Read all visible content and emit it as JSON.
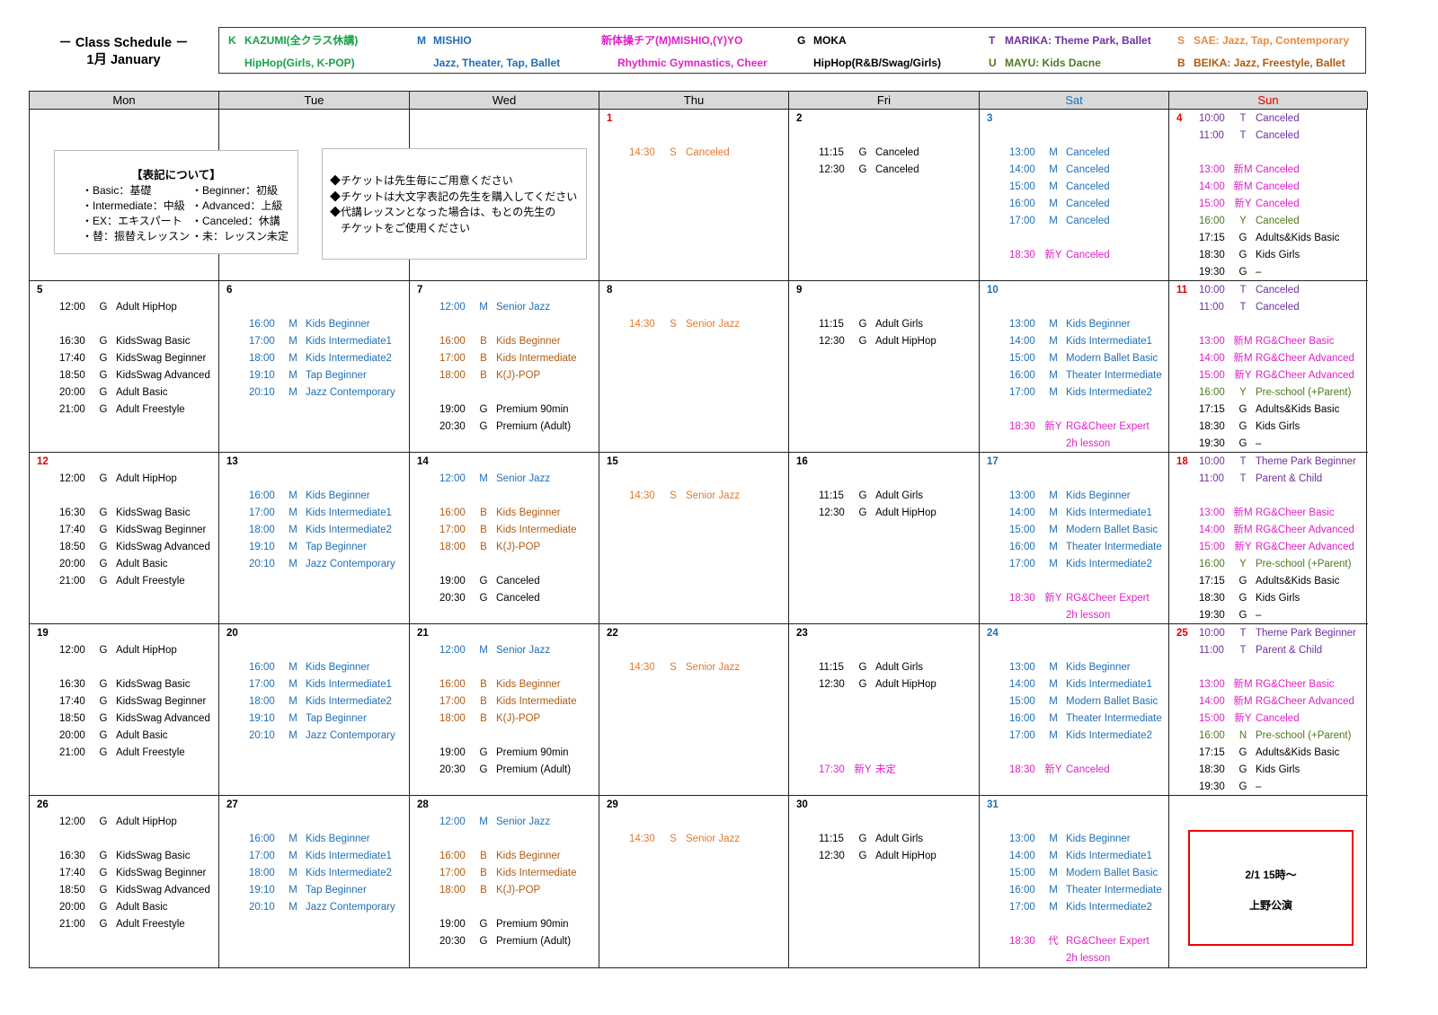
{
  "header": {
    "title_line1": "－ Class Schedule －",
    "title_line2": "1月 January"
  },
  "teachers": [
    {
      "code": "K",
      "name": "KAZUMI(全クラス休講)",
      "desc": "HipHop(Girls, K-POP)",
      "color": "#1aa04a"
    },
    {
      "code": "M",
      "name": "MISHIO",
      "desc": "Jazz, Theater, Tap, Ballet",
      "color": "#1f6fb5"
    },
    {
      "code": "",
      "name": "新体操チア(M)MISHIO,(Y)YO",
      "desc": "Rhythmic Gymnastics, Cheer",
      "color": "#e020c8"
    },
    {
      "code": "G",
      "name": "MOKA",
      "desc": "HipHop(R&B/Swag/Girls)",
      "color": "#000000"
    },
    {
      "code": "T",
      "name": "MARIKA: Theme Park, Ballet",
      "desc": "MAYU: Kids Dacne",
      "desc_code": "U",
      "color": "#7030a0",
      "desc_color": "#4e7a1f"
    },
    {
      "code": "S",
      "name": "SAE: Jazz, Tap, Contemporary",
      "desc": "BEIKA: Jazz, Freestyle, Ballet",
      "desc_code": "B",
      "color": "#e88a40",
      "desc_color": "#b05a10"
    }
  ],
  "code_colors": {
    "G": "#000000",
    "M": "#1f6fb5",
    "新M": "#e020c8",
    "新Y": "#e020c8",
    "代": "#e020c8",
    "Y": "#4e7a1f",
    "N": "#4e7a1f",
    "T": "#7030a0",
    "S": "#e07a30",
    "B": "#b05a10"
  },
  "day_colors": {
    "red": "#e00000",
    "blue": "#1f6fb5",
    "black": "#000000"
  },
  "weekdays": [
    {
      "label": "Mon",
      "color": "#000000"
    },
    {
      "label": "Tue",
      "color": "#000000"
    },
    {
      "label": "Wed",
      "color": "#000000"
    },
    {
      "label": "Thu",
      "color": "#000000"
    },
    {
      "label": "Fri",
      "color": "#000000"
    },
    {
      "label": "Sat",
      "color": "#1f6fb5"
    },
    {
      "label": "Sun",
      "color": "#e00000"
    }
  ],
  "notation_box": {
    "heading": "【表記について】",
    "items": [
      "・Basic：基礎",
      "・Beginner：初級",
      "・Intermediate：中級",
      "・Advanced：上級",
      "・EX：エキスパート",
      "・Canceled：休講",
      "・替：振替えレッスン",
      "・未：レッスン未定"
    ]
  },
  "ticket_notes": [
    "◆チケットは先生毎にご用意ください",
    "◆チケットは大文字表記の先生を購入してください",
    "◆代講レッスンとなった場合は、もとの先生の",
    "　チケットをご使用ください"
  ],
  "event_box": {
    "line1": "2/1 15時～",
    "line2": "上野公演"
  },
  "weeks": [
    [
      {
        "day": "",
        "lines": []
      },
      {
        "day": "",
        "lines": []
      },
      {
        "day": "",
        "lines": []
      },
      {
        "day": "1",
        "color": "red",
        "lines": [
          null,
          null,
          [
            "14:30",
            "S",
            "Canceled"
          ]
        ]
      },
      {
        "day": "2",
        "lines": [
          null,
          null,
          [
            "11:15",
            "G",
            "Canceled"
          ],
          [
            "12:30",
            "G",
            "Canceled"
          ]
        ]
      },
      {
        "day": "3",
        "color": "blue",
        "lines": [
          null,
          null,
          [
            "13:00",
            "M",
            "Canceled"
          ],
          [
            "14:00",
            "M",
            "Canceled"
          ],
          [
            "15:00",
            "M",
            "Canceled"
          ],
          [
            "16:00",
            "M",
            "Canceled"
          ],
          [
            "17:00",
            "M",
            "Canceled"
          ],
          null,
          [
            "18:30",
            "新Y",
            "Canceled"
          ]
        ]
      },
      {
        "day": "4",
        "color": "red",
        "lines": [
          [
            "10:00",
            "T",
            "Canceled"
          ],
          [
            "11:00",
            "T",
            "Canceled"
          ],
          null,
          [
            "13:00",
            "新M",
            "Canceled"
          ],
          [
            "14:00",
            "新M",
            "Canceled"
          ],
          [
            "15:00",
            "新Y",
            "Canceled"
          ],
          [
            "16:00",
            "Y",
            "Canceled"
          ],
          [
            "17:15",
            "G",
            "Adults&Kids Basic"
          ],
          [
            "18:30",
            "G",
            "Kids Girls"
          ],
          [
            "19:30",
            "G",
            "–"
          ]
        ]
      }
    ],
    [
      {
        "day": "5",
        "lines": [
          null,
          [
            "12:00",
            "G",
            "Adult HipHop"
          ],
          null,
          [
            "16:30",
            "G",
            "KidsSwag Basic"
          ],
          [
            "17:40",
            "G",
            "KidsSwag Beginner"
          ],
          [
            "18:50",
            "G",
            "KidsSwag Advanced"
          ],
          [
            "20:00",
            "G",
            "Adult Basic"
          ],
          [
            "21:00",
            "G",
            "Adult Freestyle"
          ]
        ]
      },
      {
        "day": "6",
        "lines": [
          null,
          null,
          [
            "16:00",
            "M",
            "Kids Beginner"
          ],
          [
            "17:00",
            "M",
            "Kids Intermediate1"
          ],
          [
            "18:00",
            "M",
            "Kids Intermediate2"
          ],
          [
            "19:10",
            "M",
            "Tap Beginner"
          ],
          [
            "20:10",
            "M",
            "Jazz Contemporary"
          ]
        ]
      },
      {
        "day": "7",
        "lines": [
          null,
          [
            "12:00",
            "M",
            "Senior Jazz"
          ],
          null,
          [
            "16:00",
            "B",
            "Kids Beginner"
          ],
          [
            "17:00",
            "B",
            "Kids Intermediate"
          ],
          [
            "18:00",
            "B",
            "K(J)-POP"
          ],
          null,
          [
            "19:00",
            "G",
            "Premium 90min"
          ],
          [
            "20:30",
            "G",
            "Premium (Adult)"
          ]
        ]
      },
      {
        "day": "8",
        "lines": [
          null,
          null,
          [
            "14:30",
            "S",
            "Senior Jazz"
          ]
        ]
      },
      {
        "day": "9",
        "lines": [
          null,
          null,
          [
            "11:15",
            "G",
            "Adult Girls"
          ],
          [
            "12:30",
            "G",
            "Adult HipHop"
          ]
        ]
      },
      {
        "day": "10",
        "color": "blue",
        "lines": [
          null,
          null,
          [
            "13:00",
            "M",
            "Kids Beginner"
          ],
          [
            "14:00",
            "M",
            "Kids Intermediate1"
          ],
          [
            "15:00",
            "M",
            "Modern Ballet Basic"
          ],
          [
            "16:00",
            "M",
            "Theater Intermediate"
          ],
          [
            "17:00",
            "M",
            "Kids Intermediate2"
          ],
          null,
          [
            "18:30",
            "新Y",
            "RG&Cheer Expert"
          ],
          [
            "",
            "",
            "2h lesson",
            "新Y"
          ]
        ]
      },
      {
        "day": "11",
        "color": "red",
        "lines": [
          [
            "10:00",
            "T",
            "Canceled"
          ],
          [
            "11:00",
            "T",
            "Canceled"
          ],
          null,
          [
            "13:00",
            "新M",
            "RG&Cheer Basic"
          ],
          [
            "14:00",
            "新M",
            "RG&Cheer Advanced"
          ],
          [
            "15:00",
            "新Y",
            "RG&Cheer Advanced"
          ],
          [
            "16:00",
            "Y",
            "Pre-school (+Parent)"
          ],
          [
            "17:15",
            "G",
            "Adults&Kids Basic"
          ],
          [
            "18:30",
            "G",
            "Kids Girls"
          ],
          [
            "19:30",
            "G",
            "–"
          ]
        ]
      }
    ],
    [
      {
        "day": "12",
        "color": "red",
        "lines": [
          null,
          [
            "12:00",
            "G",
            "Adult HipHop"
          ],
          null,
          [
            "16:30",
            "G",
            "KidsSwag Basic"
          ],
          [
            "17:40",
            "G",
            "KidsSwag Beginner"
          ],
          [
            "18:50",
            "G",
            "KidsSwag Advanced"
          ],
          [
            "20:00",
            "G",
            "Adult Basic"
          ],
          [
            "21:00",
            "G",
            "Adult Freestyle"
          ]
        ]
      },
      {
        "day": "13",
        "lines": [
          null,
          null,
          [
            "16:00",
            "M",
            "Kids Beginner"
          ],
          [
            "17:00",
            "M",
            "Kids Intermediate1"
          ],
          [
            "18:00",
            "M",
            "Kids Intermediate2"
          ],
          [
            "19:10",
            "M",
            "Tap Beginner"
          ],
          [
            "20:10",
            "M",
            "Jazz Contemporary"
          ]
        ]
      },
      {
        "day": "14",
        "lines": [
          null,
          [
            "12:00",
            "M",
            "Senior Jazz"
          ],
          null,
          [
            "16:00",
            "B",
            "Kids Beginner"
          ],
          [
            "17:00",
            "B",
            "Kids Intermediate"
          ],
          [
            "18:00",
            "B",
            "K(J)-POP"
          ],
          null,
          [
            "19:00",
            "G",
            "Canceled"
          ],
          [
            "20:30",
            "G",
            "Canceled"
          ]
        ]
      },
      {
        "day": "15",
        "lines": [
          null,
          null,
          [
            "14:30",
            "S",
            "Senior Jazz"
          ]
        ]
      },
      {
        "day": "16",
        "lines": [
          null,
          null,
          [
            "11:15",
            "G",
            "Adult Girls"
          ],
          [
            "12:30",
            "G",
            "Adult HipHop"
          ]
        ]
      },
      {
        "day": "17",
        "color": "blue",
        "lines": [
          null,
          null,
          [
            "13:00",
            "M",
            "Kids Beginner"
          ],
          [
            "14:00",
            "M",
            "Kids Intermediate1"
          ],
          [
            "15:00",
            "M",
            "Modern Ballet Basic"
          ],
          [
            "16:00",
            "M",
            "Theater Intermediate"
          ],
          [
            "17:00",
            "M",
            "Kids Intermediate2"
          ],
          null,
          [
            "18:30",
            "新Y",
            "RG&Cheer Expert"
          ],
          [
            "",
            "",
            "2h lesson",
            "新Y"
          ]
        ]
      },
      {
        "day": "18",
        "color": "red",
        "lines": [
          [
            "10:00",
            "T",
            "Theme Park Beginner"
          ],
          [
            "11:00",
            "T",
            "Parent & Child"
          ],
          null,
          [
            "13:00",
            "新M",
            "RG&Cheer Basic"
          ],
          [
            "14:00",
            "新M",
            "RG&Cheer Advanced"
          ],
          [
            "15:00",
            "新Y",
            "RG&Cheer Advanced"
          ],
          [
            "16:00",
            "Y",
            "Pre-school (+Parent)"
          ],
          [
            "17:15",
            "G",
            "Adults&Kids Basic"
          ],
          [
            "18:30",
            "G",
            "Kids Girls"
          ],
          [
            "19:30",
            "G",
            "–"
          ]
        ]
      }
    ],
    [
      {
        "day": "19",
        "lines": [
          null,
          [
            "12:00",
            "G",
            "Adult HipHop"
          ],
          null,
          [
            "16:30",
            "G",
            "KidsSwag Basic"
          ],
          [
            "17:40",
            "G",
            "KidsSwag Beginner"
          ],
          [
            "18:50",
            "G",
            "KidsSwag Advanced"
          ],
          [
            "20:00",
            "G",
            "Adult Basic"
          ],
          [
            "21:00",
            "G",
            "Adult Freestyle"
          ]
        ]
      },
      {
        "day": "20",
        "lines": [
          null,
          null,
          [
            "16:00",
            "M",
            "Kids Beginner"
          ],
          [
            "17:00",
            "M",
            "Kids Intermediate1"
          ],
          [
            "18:00",
            "M",
            "Kids Intermediate2"
          ],
          [
            "19:10",
            "M",
            "Tap Beginner"
          ],
          [
            "20:10",
            "M",
            "Jazz Contemporary"
          ]
        ]
      },
      {
        "day": "21",
        "lines": [
          null,
          [
            "12:00",
            "M",
            "Senior Jazz"
          ],
          null,
          [
            "16:00",
            "B",
            "Kids Beginner"
          ],
          [
            "17:00",
            "B",
            "Kids Intermediate"
          ],
          [
            "18:00",
            "B",
            "K(J)-POP"
          ],
          null,
          [
            "19:00",
            "G",
            "Premium 90min"
          ],
          [
            "20:30",
            "G",
            "Premium (Adult)"
          ]
        ]
      },
      {
        "day": "22",
        "lines": [
          null,
          null,
          [
            "14:30",
            "S",
            "Senior Jazz"
          ]
        ]
      },
      {
        "day": "23",
        "lines": [
          null,
          null,
          [
            "11:15",
            "G",
            "Adult Girls"
          ],
          [
            "12:30",
            "G",
            "Adult HipHop"
          ],
          null,
          null,
          null,
          null,
          [
            "17:30",
            "新Y",
            "未定"
          ]
        ]
      },
      {
        "day": "24",
        "color": "blue",
        "lines": [
          null,
          null,
          [
            "13:00",
            "M",
            "Kids Beginner"
          ],
          [
            "14:00",
            "M",
            "Kids Intermediate1"
          ],
          [
            "15:00",
            "M",
            "Modern Ballet Basic"
          ],
          [
            "16:00",
            "M",
            "Theater Intermediate"
          ],
          [
            "17:00",
            "M",
            "Kids Intermediate2"
          ],
          null,
          [
            "18:30",
            "新Y",
            "Canceled"
          ]
        ]
      },
      {
        "day": "25",
        "color": "red",
        "lines": [
          [
            "10:00",
            "T",
            "Theme Park Beginner"
          ],
          [
            "11:00",
            "T",
            "Parent & Child"
          ],
          null,
          [
            "13:00",
            "新M",
            "RG&Cheer Basic"
          ],
          [
            "14:00",
            "新M",
            "RG&Cheer Advanced"
          ],
          [
            "15:00",
            "新Y",
            "Canceled"
          ],
          [
            "16:00",
            "N",
            "Pre-school (+Parent)"
          ],
          [
            "17:15",
            "G",
            "Adults&Kids Basic"
          ],
          [
            "18:30",
            "G",
            "Kids Girls"
          ],
          [
            "19:30",
            "G",
            "–"
          ]
        ]
      }
    ],
    [
      {
        "day": "26",
        "lines": [
          null,
          [
            "12:00",
            "G",
            "Adult HipHop"
          ],
          null,
          [
            "16:30",
            "G",
            "KidsSwag Basic"
          ],
          [
            "17:40",
            "G",
            "KidsSwag Beginner"
          ],
          [
            "18:50",
            "G",
            "KidsSwag Advanced"
          ],
          [
            "20:00",
            "G",
            "Adult Basic"
          ],
          [
            "21:00",
            "G",
            "Adult Freestyle"
          ]
        ]
      },
      {
        "day": "27",
        "lines": [
          null,
          null,
          [
            "16:00",
            "M",
            "Kids Beginner"
          ],
          [
            "17:00",
            "M",
            "Kids Intermediate1"
          ],
          [
            "18:00",
            "M",
            "Kids Intermediate2"
          ],
          [
            "19:10",
            "M",
            "Tap Beginner"
          ],
          [
            "20:10",
            "M",
            "Jazz Contemporary"
          ]
        ]
      },
      {
        "day": "28",
        "lines": [
          null,
          [
            "12:00",
            "M",
            "Senior Jazz"
          ],
          null,
          [
            "16:00",
            "B",
            "Kids Beginner"
          ],
          [
            "17:00",
            "B",
            "Kids Intermediate"
          ],
          [
            "18:00",
            "B",
            "K(J)-POP"
          ],
          null,
          [
            "19:00",
            "G",
            "Premium 90min"
          ],
          [
            "20:30",
            "G",
            "Premium (Adult)"
          ]
        ]
      },
      {
        "day": "29",
        "lines": [
          null,
          null,
          [
            "14:30",
            "S",
            "Senior Jazz"
          ]
        ]
      },
      {
        "day": "30",
        "lines": [
          null,
          null,
          [
            "11:15",
            "G",
            "Adult Girls"
          ],
          [
            "12:30",
            "G",
            "Adult HipHop"
          ]
        ]
      },
      {
        "day": "31",
        "color": "blue",
        "lines": [
          null,
          null,
          [
            "13:00",
            "M",
            "Kids Beginner"
          ],
          [
            "14:00",
            "M",
            "Kids Intermediate1"
          ],
          [
            "15:00",
            "M",
            "Modern Ballet Basic"
          ],
          [
            "16:00",
            "M",
            "Theater Intermediate"
          ],
          [
            "17:00",
            "M",
            "Kids Intermediate2"
          ],
          null,
          [
            "18:30",
            "代",
            "RG&Cheer Expert"
          ],
          [
            "",
            "",
            "2h lesson",
            "代"
          ]
        ]
      },
      {
        "day": "",
        "lines": []
      }
    ]
  ]
}
